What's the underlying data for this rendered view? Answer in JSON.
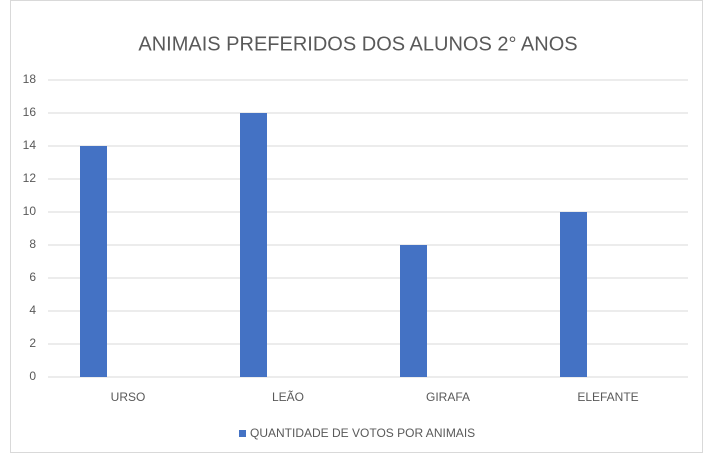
{
  "chart_data": {
    "type": "bar",
    "title": "ANIMAIS PREFERIDOS DOS ALUNOS 2° ANOS",
    "categories": [
      "URSO",
      "LEÃO",
      "GIRAFA",
      "ELEFANTE"
    ],
    "series": [
      {
        "name": "QUANTIDADE DE VOTOS POR ANIMAIS",
        "color": "#4472c4",
        "values": [
          14,
          16,
          8,
          10
        ]
      }
    ],
    "ylim": [
      0,
      18
    ],
    "yticks": [
      0,
      2,
      4,
      6,
      8,
      10,
      12,
      14,
      16,
      18
    ],
    "grid": true,
    "legend": "bottom"
  }
}
